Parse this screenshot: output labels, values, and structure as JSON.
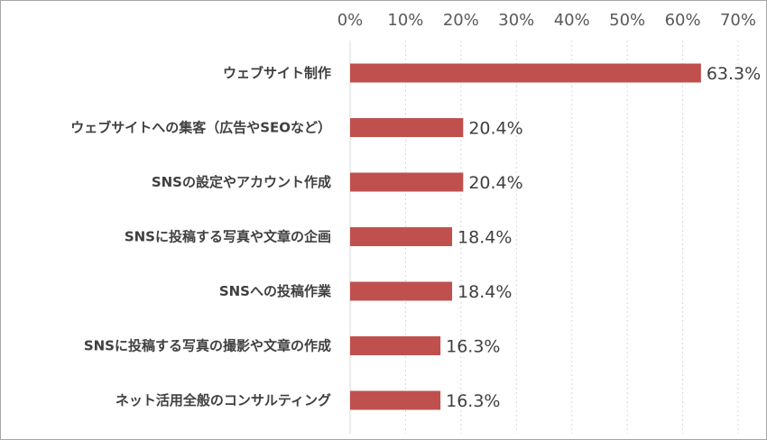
{
  "chart_data": {
    "type": "bar",
    "orientation": "horizontal",
    "categories": [
      "ウェブサイト制作",
      "ウェブサイトへの集客（広告やSEOなど）",
      "SNSの設定やアカウント作成",
      "SNSに投稿する写真や文章の企画",
      "SNSへの投稿作業",
      "SNSに投稿する写真の撮影や文章の作成",
      "ネット活用全般のコンサルティング"
    ],
    "values": [
      63.3,
      20.4,
      20.4,
      18.4,
      18.4,
      16.3,
      16.3
    ],
    "data_labels": [
      "63.3%",
      "20.4%",
      "20.4%",
      "18.4%",
      "18.4%",
      "16.3%",
      "16.3%"
    ],
    "xlim": [
      0,
      70
    ],
    "ticks": [
      "0%",
      "10%",
      "20%",
      "30%",
      "40%",
      "50%",
      "60%",
      "70%"
    ],
    "x_axis_position": "top",
    "grid": true,
    "bar_color": "#c0504d",
    "title": "",
    "xlabel": "",
    "ylabel": ""
  }
}
